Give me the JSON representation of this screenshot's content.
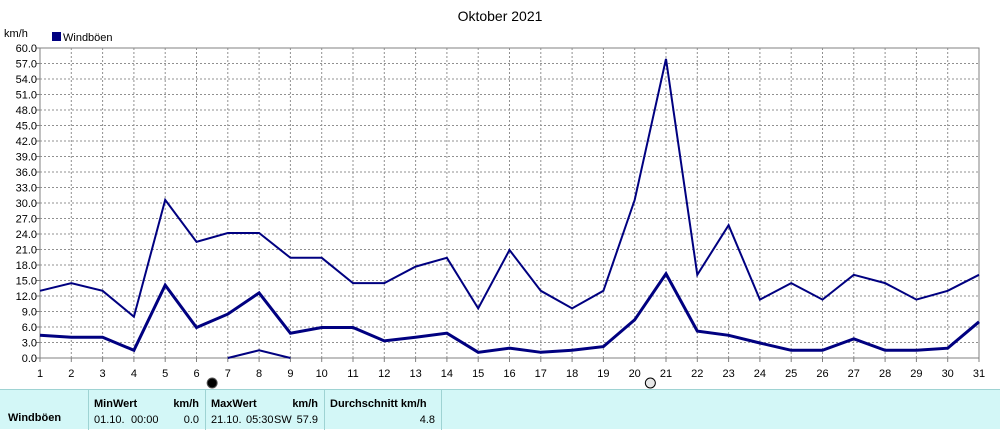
{
  "chart_data": {
    "type": "line",
    "title": "Oktober 2021",
    "yunit": "km/h",
    "ylim": [
      0,
      60
    ],
    "yticks": [
      "0.0",
      "3.0",
      "6.0",
      "9.0",
      "12.0",
      "15.0",
      "18.0",
      "21.0",
      "24.0",
      "27.0",
      "30.0",
      "33.0",
      "36.0",
      "39.0",
      "42.0",
      "45.0",
      "48.0",
      "51.0",
      "54.0",
      "57.0",
      "60.0"
    ],
    "categories": [
      "1",
      "2",
      "3",
      "4",
      "5",
      "6",
      "7",
      "8",
      "9",
      "10",
      "11",
      "12",
      "13",
      "14",
      "15",
      "16",
      "17",
      "18",
      "19",
      "20",
      "21",
      "22",
      "23",
      "24",
      "25",
      "26",
      "27",
      "28",
      "29",
      "30",
      "31"
    ],
    "grid": true,
    "legend": "top-left",
    "series": [
      {
        "name": "Windböen",
        "color": "#000080",
        "values_max": [
          13.0,
          14.5,
          13.0,
          8.0,
          30.6,
          22.5,
          24.2,
          24.2,
          19.4,
          19.4,
          14.5,
          14.5,
          17.7,
          19.4,
          9.6,
          20.9,
          13.0,
          9.6,
          13.0,
          30.6,
          57.9,
          16.1,
          25.7,
          11.3,
          14.5,
          11.3,
          16.1,
          14.5,
          11.3,
          13.0,
          16.1
        ],
        "values_avg": [
          4.4,
          4.0,
          4.0,
          1.5,
          14.1,
          5.9,
          8.5,
          12.6,
          4.8,
          5.9,
          5.9,
          3.3,
          4.0,
          4.8,
          1.1,
          1.9,
          1.1,
          1.5,
          2.2,
          7.4,
          16.3,
          5.2,
          4.4,
          2.9,
          1.5,
          1.5,
          3.7,
          1.5,
          1.5,
          1.9,
          7.0
        ],
        "values_partial": [
          null,
          null,
          null,
          null,
          null,
          null,
          0.0,
          1.5,
          0.0,
          null,
          null,
          null,
          null,
          null,
          null,
          null,
          null,
          null,
          null,
          null,
          null,
          null,
          null,
          null,
          null,
          null,
          null,
          null,
          null,
          null,
          null
        ]
      }
    ]
  },
  "markers": [
    {
      "name": "new-moon-icon",
      "day": 6.5
    },
    {
      "name": "full-moon-icon",
      "day": 20.5
    }
  ],
  "stats": {
    "row_label": "Windböen",
    "min": {
      "label": "MinWert",
      "unit": "km/h",
      "date": "01.10.",
      "time": "00:00",
      "value": "0.0"
    },
    "max": {
      "label": "MaxWert",
      "unit": "km/h",
      "date": "21.10.",
      "time": "05:30",
      "dir": "SW",
      "value": "57.9"
    },
    "avg": {
      "label": "Durchschnitt km/h",
      "value": "4.8"
    }
  }
}
